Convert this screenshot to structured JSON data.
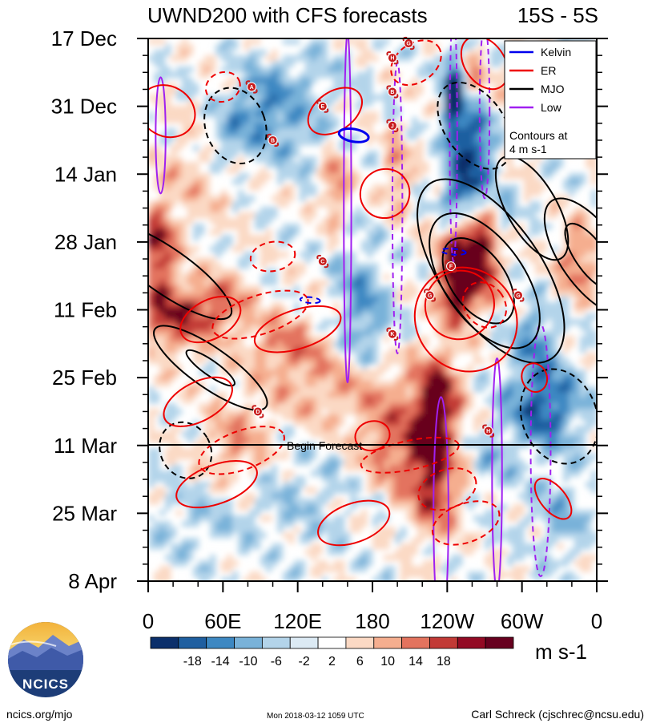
{
  "chart_data": {
    "type": "heatmap",
    "title": "UWND200 with CFS forecasts",
    "region": "15S - 5S",
    "x_ticks": [
      "0",
      "60E",
      "120E",
      "180",
      "120W",
      "60W",
      "0"
    ],
    "y_ticks": [
      "17 Dec",
      "31 Dec",
      "14 Jan",
      "28 Jan",
      "11 Feb",
      "25 Feb",
      "11 Mar",
      "25 Mar",
      "8 Apr"
    ],
    "forecast_label": "Begin Forecast",
    "forecast_start": "11 Mar",
    "legend": [
      {
        "name": "Kelvin",
        "color": "#0000ee"
      },
      {
        "name": "ER",
        "color": "#ee0000"
      },
      {
        "name": "MJO",
        "color": "#000000"
      },
      {
        "name": "Low",
        "color": "#a020f0"
      }
    ],
    "contour_note_1": "Contours at",
    "contour_note_2": "4 m s-1",
    "colorbar": {
      "labels": [
        "-18",
        "-14",
        "-10",
        "-6",
        "-2",
        "2",
        "6",
        "10",
        "14",
        "18"
      ],
      "colors": [
        "#0b2f6b",
        "#1f5fa0",
        "#3d88c2",
        "#79b2d9",
        "#b3d4ea",
        "#dceaf4",
        "#ffffff",
        "#fbd9c4",
        "#f5ae8f",
        "#e3735e",
        "#c23a36",
        "#930a24",
        "#67001f"
      ],
      "units": "m s-1"
    },
    "storm_markers": [
      {
        "label": "G",
        "lon": 209,
        "day": 1
      },
      {
        "label": "H",
        "lon": 196,
        "day": 4
      },
      {
        "label": "A",
        "lon": 83,
        "day": 10
      },
      {
        "label": "B",
        "lon": 196,
        "day": 11
      },
      {
        "label": "E",
        "lon": 140,
        "day": 14
      },
      {
        "label": "J",
        "lon": 196,
        "day": 18
      },
      {
        "label": "B",
        "lon": 100,
        "day": 21
      },
      {
        "label": "C",
        "lon": 140,
        "day": 46
      },
      {
        "label": "F",
        "lon": 243,
        "day": 47
      },
      {
        "label": "G",
        "lon": 226,
        "day": 53
      },
      {
        "label": "G",
        "lon": 297,
        "day": 53
      },
      {
        "label": "K",
        "lon": 196,
        "day": 61
      },
      {
        "label": "D",
        "lon": 88,
        "day": 77
      },
      {
        "label": "H",
        "lon": 273,
        "day": 81
      }
    ]
  },
  "footer": {
    "logo_text": "NCICS",
    "site": "ncics.org/mjo",
    "timestamp": "Mon 2018-03-12 1059 UTC",
    "author": "Carl Schreck (cjschrec@ncsu.edu)"
  }
}
